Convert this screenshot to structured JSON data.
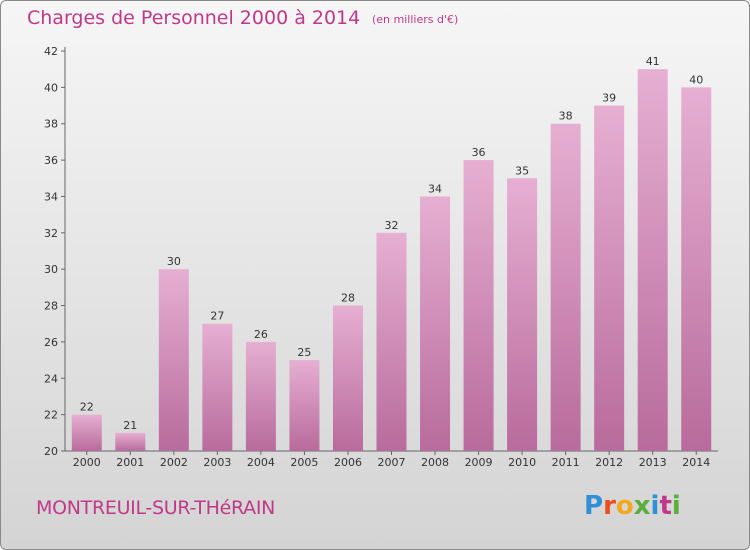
{
  "title": "Charges de Personnel 2000 à 2014",
  "subtitle": "(en milliers d'€)",
  "commune": "MONTREUIL-SUR-THéRAIN",
  "logo_text": "Proxiti",
  "logo_icon": "logo-icon",
  "colors": {
    "bar": "#c0679f",
    "bar_light": "#e8b4d6",
    "title": "#c0388a",
    "axis": "#333333"
  },
  "chart_data": {
    "type": "bar",
    "title": "Charges de Personnel 2000 à 2014",
    "subtitle": "(en milliers d'€)",
    "xlabel": "",
    "ylabel": "",
    "categories": [
      "2000",
      "2001",
      "2002",
      "2003",
      "2004",
      "2005",
      "2006",
      "2007",
      "2008",
      "2009",
      "2010",
      "2011",
      "2012",
      "2013",
      "2014"
    ],
    "values": [
      22,
      21,
      30,
      27,
      26,
      25,
      28,
      32,
      34,
      36,
      35,
      38,
      39,
      41,
      40
    ],
    "ylim": [
      20,
      42
    ],
    "yticks": [
      20,
      22,
      24,
      26,
      28,
      30,
      32,
      34,
      36,
      38,
      40,
      42
    ],
    "grid": false
  }
}
